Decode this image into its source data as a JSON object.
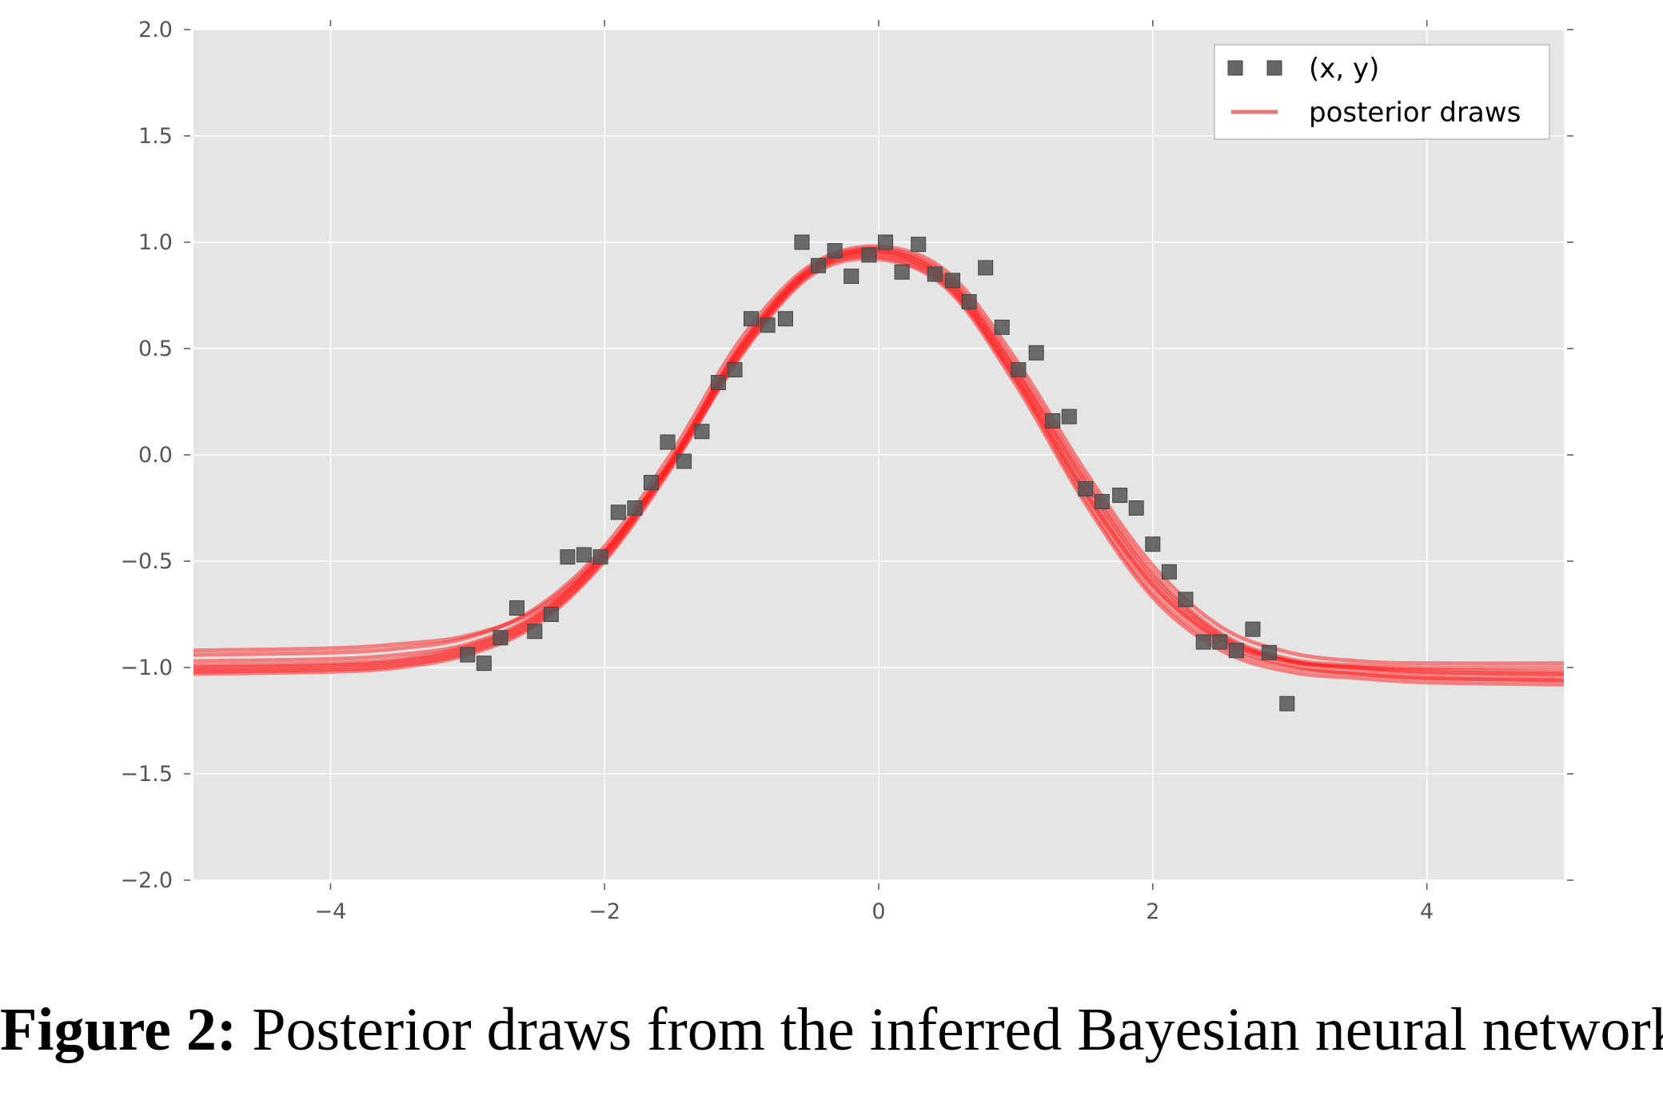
{
  "caption": {
    "label": "Figure 2:",
    "text": "Posterior draws from the inferred Bayesian neural network."
  },
  "colors": {
    "plot_background": "#e5e5e5",
    "grid": "#ffffff",
    "points": "#555555",
    "draws": "#ff1a1a",
    "legend_line": "#e8777a"
  },
  "chart_data": {
    "type": "scatter",
    "title": "",
    "xlabel": "",
    "ylabel": "",
    "xlim": [
      -5,
      5
    ],
    "ylim": [
      -2.0,
      2.0
    ],
    "grid": true,
    "legend_position": "top-right",
    "x_ticks": [
      -4,
      -2,
      0,
      2,
      4
    ],
    "x_tick_labels": [
      "−4",
      "−2",
      "0",
      "2",
      "4"
    ],
    "y_ticks": [
      2.0,
      1.5,
      1.0,
      0.5,
      0.0,
      -0.5,
      -1.0,
      -1.5,
      -2.0
    ],
    "y_tick_labels": [
      "2.0",
      "1.5",
      "1.0",
      "0.5",
      "0.0",
      "−0.5",
      "−1.0",
      "−1.5",
      "−2.0"
    ],
    "legend": [
      {
        "label": "(x, y)",
        "marker": "square-pair"
      },
      {
        "label": "posterior draws",
        "marker": "line"
      }
    ],
    "series": [
      {
        "name": "(x, y)",
        "kind": "scatter",
        "x": [
          -3.0,
          -2.88,
          -2.76,
          -2.64,
          -2.51,
          -2.39,
          -2.27,
          -2.15,
          -2.03,
          -1.9,
          -1.78,
          -1.66,
          -1.54,
          -1.42,
          -1.29,
          -1.17,
          -1.05,
          -0.93,
          -0.81,
          -0.68,
          -0.56,
          -0.44,
          -0.32,
          -0.2,
          -0.07,
          0.05,
          0.17,
          0.29,
          0.41,
          0.54,
          0.66,
          0.78,
          0.9,
          1.02,
          1.15,
          1.27,
          1.39,
          1.51,
          1.63,
          1.76,
          1.88,
          2.0,
          2.12,
          2.24,
          2.37,
          2.49,
          2.61,
          2.73,
          2.85,
          2.98
        ],
        "y": [
          -0.94,
          -0.98,
          -0.86,
          -0.72,
          -0.83,
          -0.75,
          -0.48,
          -0.47,
          -0.48,
          -0.27,
          -0.25,
          -0.13,
          0.06,
          -0.03,
          0.11,
          0.34,
          0.4,
          0.64,
          0.61,
          0.64,
          1.0,
          0.89,
          0.96,
          0.84,
          0.94,
          1.0,
          0.86,
          0.99,
          0.85,
          0.82,
          0.72,
          0.88,
          0.6,
          0.4,
          0.48,
          0.16,
          0.18,
          -0.16,
          -0.22,
          -0.19,
          -0.25,
          -0.42,
          -0.55,
          -0.68,
          -0.88,
          -0.88,
          -0.92,
          -0.82,
          -0.93,
          -1.17
        ]
      }
    ],
    "posterior_draws": [
      {
        "x": [
          -5.0,
          -4.0,
          -3.5,
          -3.0,
          -2.5,
          -2.0,
          -1.5,
          -1.0,
          -0.5,
          0.0,
          0.5,
          1.0,
          1.5,
          2.0,
          2.5,
          3.0,
          3.5,
          4.0,
          5.0
        ],
        "y": [
          -1.0,
          -0.99,
          -0.97,
          -0.91,
          -0.77,
          -0.47,
          -0.02,
          0.5,
          0.86,
          0.95,
          0.8,
          0.36,
          -0.17,
          -0.61,
          -0.87,
          -0.97,
          -1.0,
          -1.01,
          -1.02
        ]
      },
      {
        "x": [
          -5.0,
          -4.0,
          -3.5,
          -3.0,
          -2.5,
          -2.0,
          -1.5,
          -1.0,
          -0.5,
          0.0,
          0.5,
          1.0,
          1.5,
          2.0,
          2.5,
          3.0,
          3.5,
          4.0,
          5.0
        ],
        "y": [
          -0.92,
          -0.91,
          -0.89,
          -0.85,
          -0.73,
          -0.45,
          -0.02,
          0.52,
          0.88,
          0.97,
          0.84,
          0.42,
          -0.1,
          -0.55,
          -0.84,
          -0.96,
          -0.99,
          -1.0,
          -1.0
        ]
      },
      {
        "x": [
          -5.0,
          -4.0,
          -3.5,
          -3.0,
          -2.5,
          -2.0,
          -1.5,
          -1.0,
          -0.5,
          0.0,
          0.5,
          1.0,
          1.5,
          2.0,
          2.5,
          3.0,
          3.5,
          4.0,
          5.0
        ],
        "y": [
          -1.03,
          -1.02,
          -1.0,
          -0.94,
          -0.8,
          -0.5,
          -0.05,
          0.48,
          0.85,
          0.93,
          0.79,
          0.35,
          -0.2,
          -0.65,
          -0.9,
          -1.0,
          -1.03,
          -1.05,
          -1.06
        ]
      },
      {
        "x": [
          -5.0,
          -4.0,
          -3.5,
          -3.0,
          -2.5,
          -2.0,
          -1.5,
          -1.0,
          -0.5,
          0.0,
          0.5,
          1.0,
          1.5,
          2.0,
          2.5,
          3.0,
          3.5,
          4.0,
          5.0
        ],
        "y": [
          -0.94,
          -0.93,
          -0.91,
          -0.86,
          -0.72,
          -0.43,
          0.02,
          0.55,
          0.89,
          0.98,
          0.86,
          0.45,
          -0.07,
          -0.52,
          -0.81,
          -0.93,
          -0.97,
          -0.98,
          -0.98
        ]
      },
      {
        "x": [
          -5.0,
          -4.0,
          -3.5,
          -3.0,
          -2.5,
          -2.0,
          -1.5,
          -1.0,
          -0.5,
          0.0,
          0.5,
          1.0,
          1.5,
          2.0,
          2.5,
          3.0,
          3.5,
          4.0,
          5.0
        ],
        "y": [
          -1.02,
          -1.01,
          -0.99,
          -0.93,
          -0.79,
          -0.49,
          -0.04,
          0.47,
          0.84,
          0.92,
          0.78,
          0.33,
          -0.22,
          -0.67,
          -0.92,
          -1.02,
          -1.05,
          -1.07,
          -1.08
        ]
      },
      {
        "x": [
          -5.0,
          -4.0,
          -3.5,
          -3.0,
          -2.5,
          -2.0,
          -1.5,
          -1.0,
          -0.5,
          0.0,
          0.5,
          1.0,
          1.5,
          2.0,
          2.5,
          3.0,
          3.5,
          4.0,
          5.0
        ],
        "y": [
          -0.99,
          -0.98,
          -0.96,
          -0.9,
          -0.76,
          -0.46,
          -0.01,
          0.51,
          0.87,
          0.96,
          0.82,
          0.39,
          -0.14,
          -0.59,
          -0.86,
          -0.97,
          -1.0,
          -1.02,
          -1.03
        ]
      },
      {
        "x": [
          -5.0,
          -4.0,
          -3.5,
          -3.0,
          -2.5,
          -2.0,
          -1.5,
          -1.0,
          -0.5,
          0.0,
          0.5,
          1.0,
          1.5,
          2.0,
          2.5,
          3.0,
          3.5,
          4.0,
          5.0
        ],
        "y": [
          -0.97,
          -0.96,
          -0.94,
          -0.89,
          -0.75,
          -0.46,
          -0.01,
          0.52,
          0.87,
          0.96,
          0.83,
          0.4,
          -0.12,
          -0.57,
          -0.85,
          -0.97,
          -1.01,
          -1.03,
          -1.04
        ]
      },
      {
        "x": [
          -5.0,
          -4.0,
          -3.5,
          -3.0,
          -2.5,
          -2.0,
          -1.5,
          -1.0,
          -0.5,
          0.0,
          0.5,
          1.0,
          1.5,
          2.0,
          2.5,
          3.0,
          3.5,
          4.0,
          5.0
        ],
        "y": [
          -1.01,
          -1.0,
          -0.98,
          -0.92,
          -0.78,
          -0.48,
          -0.03,
          0.49,
          0.86,
          0.94,
          0.81,
          0.37,
          -0.17,
          -0.62,
          -0.88,
          -0.99,
          -1.03,
          -1.05,
          -1.06
        ]
      }
    ]
  }
}
